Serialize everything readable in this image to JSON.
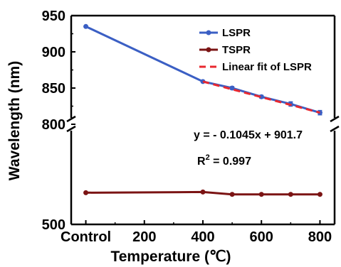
{
  "chart_data": {
    "type": "line",
    "xlabel": "Temperature (℃)",
    "ylabel": "Wavelength (nm)",
    "x_ticks": [
      {
        "x": 0,
        "label": "Control"
      },
      {
        "x": 200,
        "label": "200"
      },
      {
        "x": 400,
        "label": "400"
      },
      {
        "x": 600,
        "label": "600"
      },
      {
        "x": 800,
        "label": "800"
      }
    ],
    "y_ticks_upper": [
      {
        "y": 800,
        "label": "800"
      },
      {
        "y": 850,
        "label": "850"
      },
      {
        "y": 900,
        "label": "900"
      },
      {
        "y": 950,
        "label": "950"
      }
    ],
    "y_ticks_lower": [
      {
        "y": 500,
        "label": "500"
      }
    ],
    "xlim": [
      -50,
      850
    ],
    "ylim_upper": [
      800,
      950
    ],
    "ylim_lower": [
      500,
      800
    ],
    "broken_y_axis": true,
    "series": [
      {
        "name": "LSPR",
        "color": "#3b5fc4",
        "marker": "circle",
        "x": [
          0,
          400,
          500,
          600,
          700,
          800
        ],
        "y": [
          935,
          859,
          850,
          838,
          828,
          816
        ],
        "err": [
          0,
          1,
          2,
          2,
          3,
          3
        ]
      },
      {
        "name": "TSPR",
        "color": "#7b1414",
        "marker": "circle",
        "x": [
          0,
          400,
          500,
          600,
          700,
          800
        ],
        "y": [
          595,
          597,
          590,
          590,
          590,
          590
        ],
        "err": [
          0,
          0,
          1,
          1,
          2,
          1
        ]
      }
    ],
    "fit": {
      "name": "Linear fit of LSPR",
      "color": "#e8282f",
      "dashed": true,
      "slope": -0.1045,
      "intercept": 901.7,
      "x_range": [
        400,
        800
      ]
    },
    "legend": {
      "placement": "top-right",
      "entries": [
        "LSPR",
        "TSPR",
        "Linear fit of LSPR"
      ]
    },
    "annotations": {
      "equation": "y = - 0.1045x + 901.7",
      "r2_prefix": "R",
      "r2_sup": "2",
      "r2_suffix": " = 0.997"
    }
  }
}
